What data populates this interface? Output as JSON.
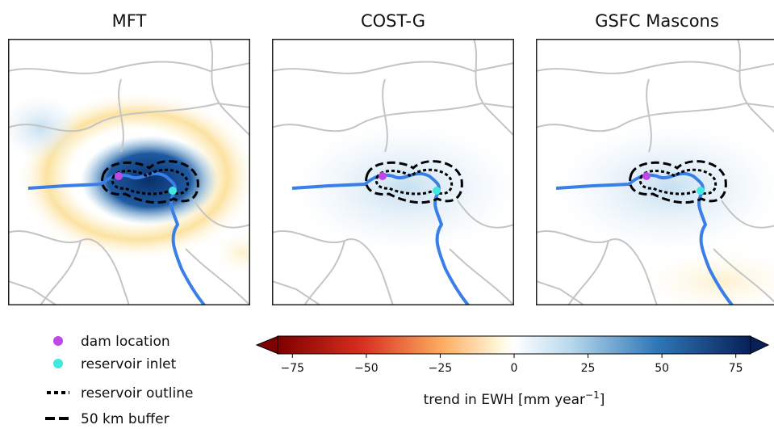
{
  "panels": [
    {
      "title": "MFT"
    },
    {
      "title": "COST-G"
    },
    {
      "title": "GSFC Mascons"
    }
  ],
  "legend": [
    {
      "label": "dam location",
      "color": "#c048e8"
    },
    {
      "label": "reservoir inlet",
      "color": "#40e8e0"
    },
    {
      "label": "reservoir outline"
    },
    {
      "label": "50 km buffer"
    }
  ],
  "colorbar": {
    "lim": [
      -80,
      80
    ],
    "ticks": [
      {
        "value": -75,
        "label": "−75"
      },
      {
        "value": -50,
        "label": "−50"
      },
      {
        "value": -25,
        "label": "−25"
      },
      0,
      25,
      50,
      75
    ],
    "label": "trend in EWH [mm year",
    "label_sup": "−1",
    "label_end": "]"
  }
}
